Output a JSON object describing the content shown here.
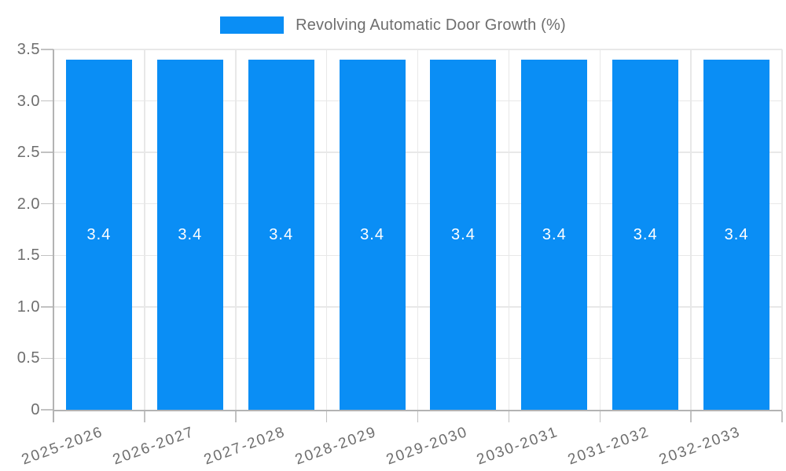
{
  "chart_data": {
    "type": "bar",
    "legend": {
      "label": "Revolving Automatic Door Growth (%)",
      "position": "top-center"
    },
    "categories": [
      "2025-2026",
      "2026-2027",
      "2027-2028",
      "2028-2029",
      "2029-2030",
      "2030-2031",
      "2031-2032",
      "2032-2033"
    ],
    "series": [
      {
        "name": "Revolving Automatic Door Growth (%)",
        "values": [
          3.4,
          3.4,
          3.4,
          3.4,
          3.4,
          3.4,
          3.4,
          3.4
        ]
      }
    ],
    "value_labels": [
      "3.4",
      "3.4",
      "3.4",
      "3.4",
      "3.4",
      "3.4",
      "3.4",
      "3.4"
    ],
    "xlabel": "",
    "ylabel": "",
    "ylim": [
      0,
      3.5
    ],
    "yticks": [
      {
        "value": 0,
        "label": "0"
      },
      {
        "value": 0.5,
        "label": "0.5"
      },
      {
        "value": 1.0,
        "label": "1.0"
      },
      {
        "value": 1.5,
        "label": "1.5"
      },
      {
        "value": 2.0,
        "label": "2.0"
      },
      {
        "value": 2.5,
        "label": "2.5"
      },
      {
        "value": 3.0,
        "label": "3.0"
      },
      {
        "value": 3.5,
        "label": "3.5"
      }
    ],
    "grid": "on",
    "x_label_rotation_deg": -20,
    "colors": {
      "bar": "#0a8ef5",
      "bar_label": "#ffffff",
      "gridline": "#e8e8e8",
      "axis_line": "#b3b3b3",
      "tick": "#c2c2c2",
      "axis_text": "#6e6e6e",
      "legend_text": "#6e6e6e",
      "background": "#ffffff"
    }
  }
}
